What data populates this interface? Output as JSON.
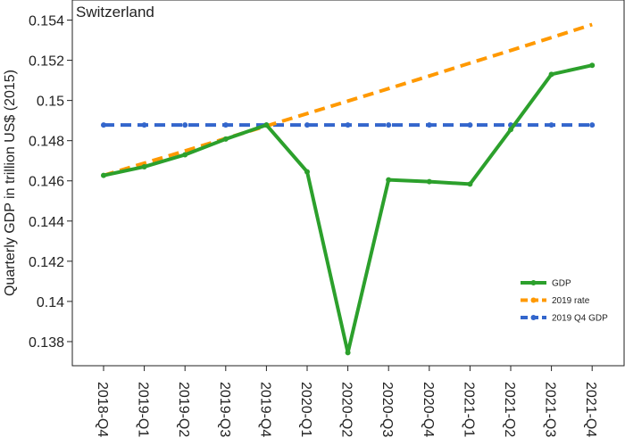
{
  "chart_data": {
    "type": "line",
    "title": "Switzerland",
    "xlabel": "",
    "ylabel": "Quarterly GDP in trillion US$ (2015)",
    "categories": [
      "2018-Q4",
      "2019-Q1",
      "2019-Q2",
      "2019-Q3",
      "2019-Q4",
      "2020-Q1",
      "2020-Q2",
      "2020-Q3",
      "2020-Q4",
      "2021-Q1",
      "2021-Q2",
      "2021-Q3",
      "2021-Q4"
    ],
    "ylim": [
      0.1368,
      0.155
    ],
    "yticks": [
      0.138,
      0.14,
      0.142,
      0.144,
      0.146,
      0.148,
      0.15,
      0.152,
      0.154
    ],
    "ytick_labels": [
      "0.138",
      "0.14",
      "0.142",
      "0.144",
      "0.146",
      "0.148",
      "0.15",
      "0.152",
      "0.154"
    ],
    "legend_position": "bottom-right",
    "grid": false,
    "series": [
      {
        "name": "GDP",
        "color": "#2ca02c",
        "style": "solid",
        "values": [
          0.14627,
          0.1467,
          0.1473,
          0.14808,
          0.14878,
          0.14645,
          0.13745,
          0.14605,
          0.14596,
          0.14584,
          0.14855,
          0.1513,
          0.15175
        ]
      },
      {
        "name": "2019 rate",
        "color": "#ff9900",
        "style": "dashed",
        "values": [
          0.14627,
          0.14688,
          0.14749,
          0.14811,
          0.14873,
          0.14935,
          0.14997,
          0.15059,
          0.15122,
          0.15186,
          0.15249,
          0.15313,
          0.15378
        ]
      },
      {
        "name": "2019 Q4 GDP",
        "color": "#3366cc",
        "style": "dashed",
        "values": [
          0.14878,
          0.14878,
          0.14878,
          0.14878,
          0.14878,
          0.14878,
          0.14878,
          0.14878,
          0.14878,
          0.14878,
          0.14878,
          0.14878,
          0.14878
        ]
      }
    ]
  }
}
